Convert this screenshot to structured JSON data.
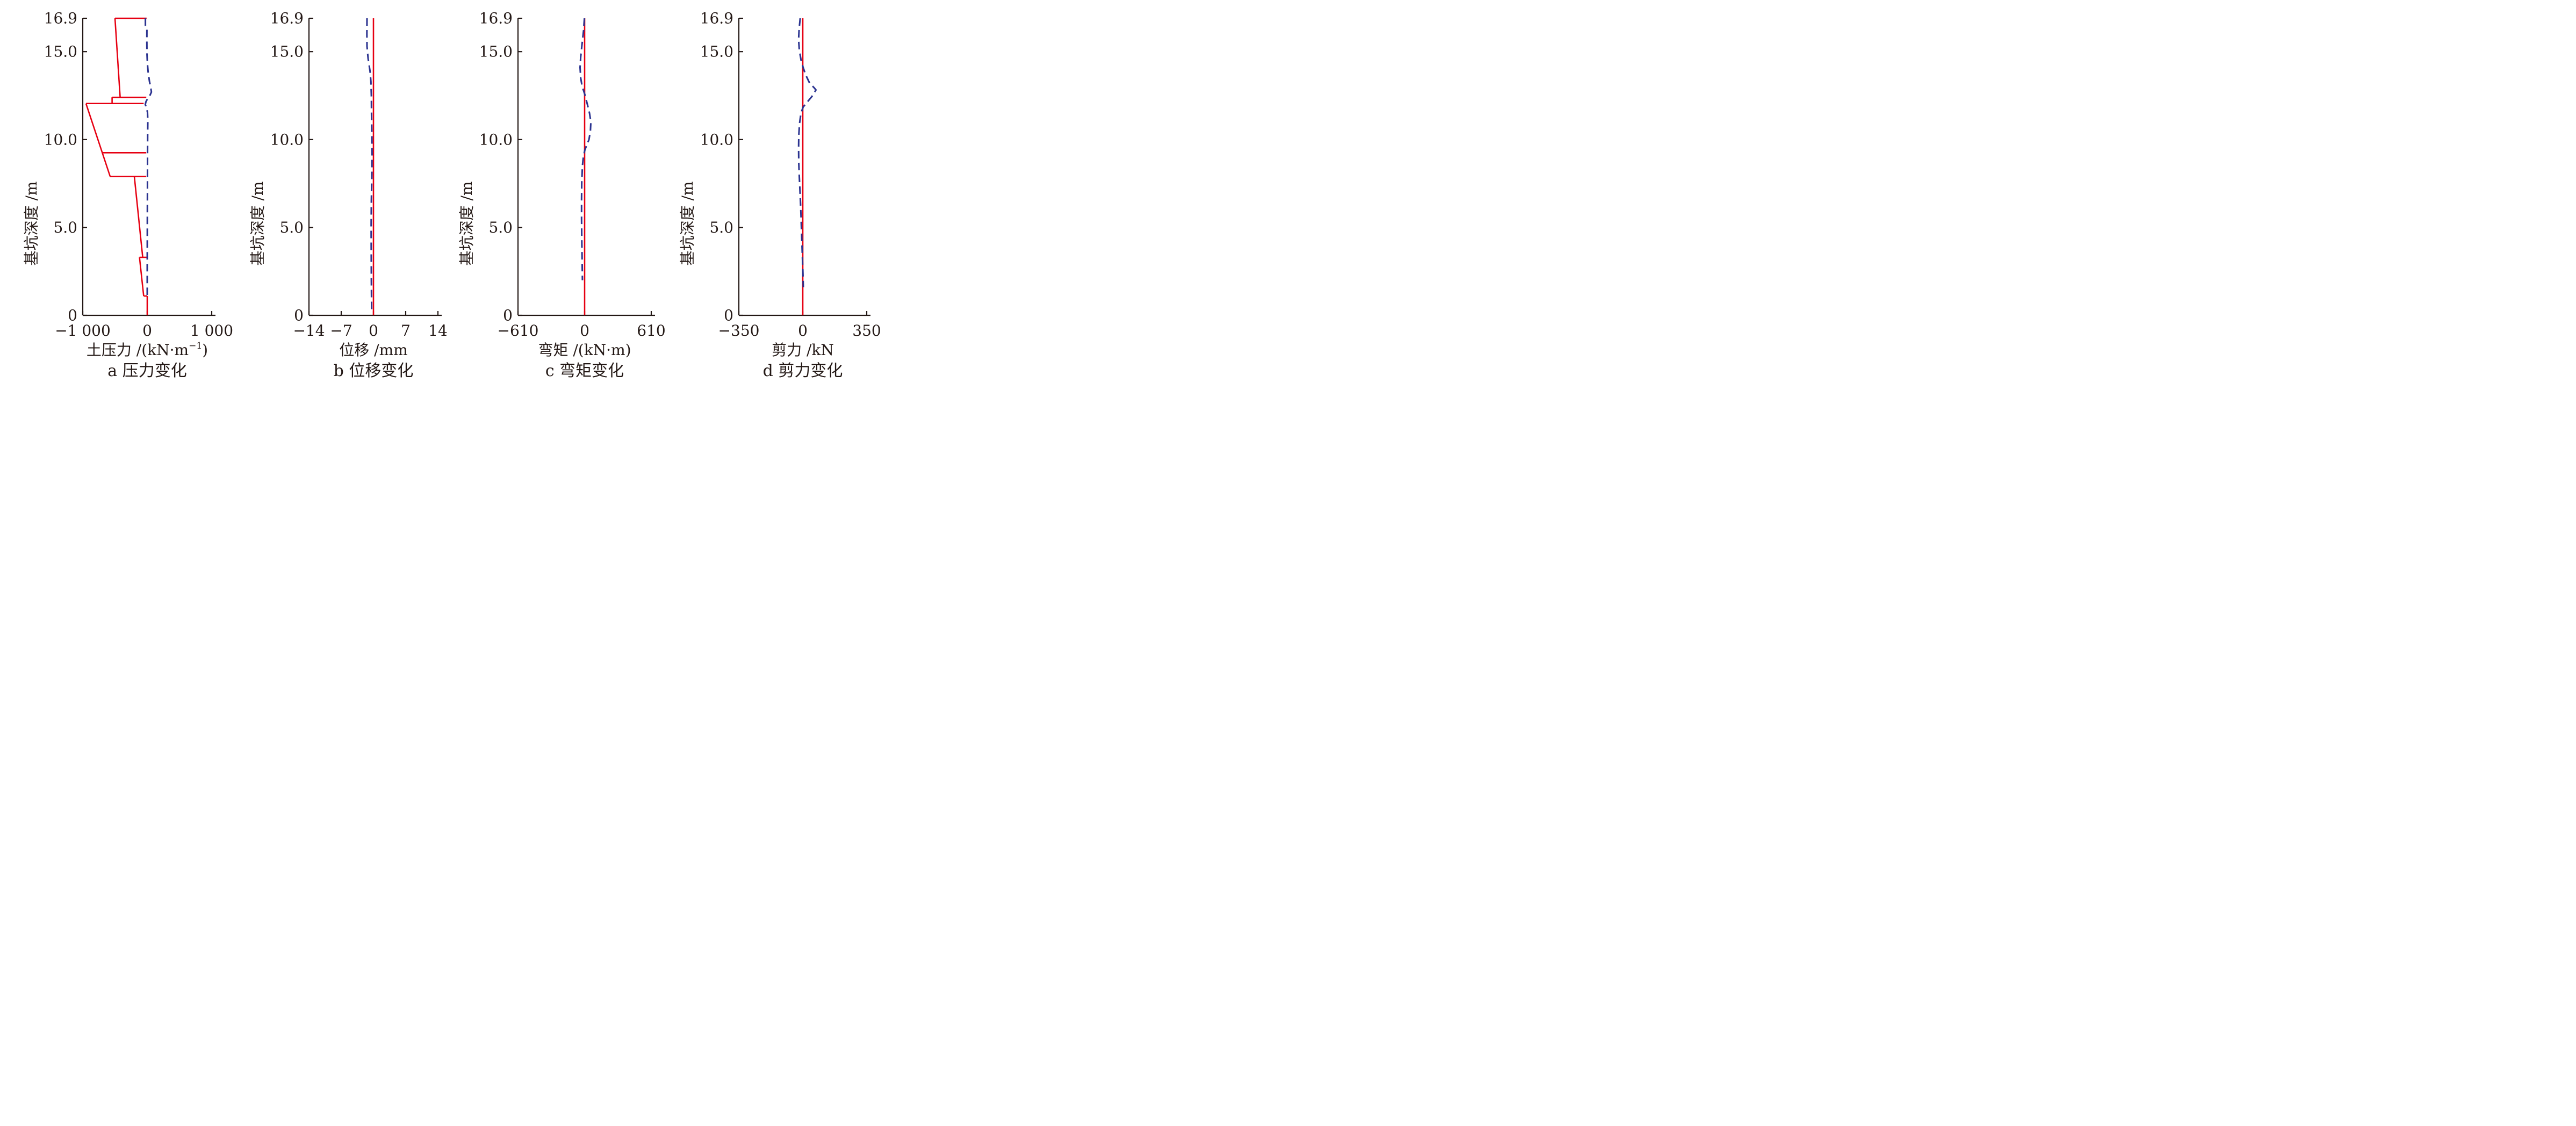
{
  "figure": {
    "background": "#ffffff",
    "colors": {
      "red": "#e60012",
      "blue": "#2b3390",
      "axis": "#231815",
      "text": "#231815"
    },
    "y_axis": {
      "label": "基坑深度 /m",
      "min": 0,
      "max": 16.9,
      "ticks": [
        {
          "value": 16.9,
          "label": "16.9"
        },
        {
          "value": 15.0,
          "label": "15.0"
        },
        {
          "value": 10.0,
          "label": "10.0"
        },
        {
          "value": 5.0,
          "label": "5.0"
        },
        {
          "value": 0,
          "label": "0"
        }
      ]
    }
  },
  "chart_data": [
    {
      "id": "a",
      "type": "line",
      "caption": "a 压力变化",
      "xlabel": "土压力 /(kN·m⁻¹)",
      "xlabel_parts": [
        {
          "t": "土压力 /(kN·m"
        },
        {
          "t": "−1",
          "sup": true
        },
        {
          "t": ")"
        }
      ],
      "ylabel": "基坑深度 /m",
      "xlim": [
        -1000,
        1000
      ],
      "ylim": [
        0,
        16.9
      ],
      "x_ticks": [
        {
          "value": -1000,
          "label": "−1 000"
        },
        {
          "value": 0,
          "label": "0"
        },
        {
          "value": 1000,
          "label": "1 000"
        }
      ],
      "series": [
        {
          "name": "earth-pressure-envelope",
          "color": "#e60012",
          "style": "solid",
          "segments": [
            [
              [
                -500,
                16.9
              ],
              [
                -10,
                16.9
              ]
            ],
            [
              [
                -500,
                16.9
              ],
              [
                -420,
                12.4
              ]
            ],
            [
              [
                -545,
                12.4
              ],
              [
                -15,
                12.4
              ]
            ],
            [
              [
                -545,
                12.4
              ],
              [
                -545,
                12.05
              ]
            ],
            [
              [
                -950,
                12.05
              ],
              [
                -55,
                12.05
              ]
            ],
            [
              [
                -950,
                12.05
              ],
              [
                -575,
                7.9
              ]
            ],
            [
              [
                -695,
                9.25
              ],
              [
                -15,
                9.25
              ]
            ],
            [
              [
                -575,
                7.9
              ],
              [
                -15,
                7.9
              ]
            ],
            [
              [
                -200,
                7.9
              ],
              [
                -70,
                3.3
              ]
            ],
            [
              [
                -120,
                3.3
              ],
              [
                -10,
                3.3
              ]
            ],
            [
              [
                -120,
                3.3
              ],
              [
                -55,
                1.1
              ]
            ],
            [
              [
                -55,
                1.1
              ],
              [
                0,
                1.1
              ]
            ],
            [
              [
                0,
                1.1
              ],
              [
                0,
                0
              ]
            ]
          ]
        },
        {
          "name": "pressure-change",
          "color": "#2b3390",
          "style": "dashed",
          "points": [
            [
              -28,
              16.9
            ],
            [
              -28,
              16.5
            ],
            [
              -5,
              16.33
            ],
            [
              -6,
              15.6
            ],
            [
              -4,
              14.9
            ],
            [
              3,
              14.3
            ],
            [
              15,
              13.8
            ],
            [
              35,
              13.3
            ],
            [
              55,
              12.95
            ],
            [
              65,
              12.7
            ],
            [
              40,
              12.5
            ],
            [
              8,
              12.35
            ],
            [
              -20,
              12.15
            ],
            [
              -30,
              12.0
            ],
            [
              -12,
              11.8
            ],
            [
              4,
              11.55
            ],
            [
              9,
              11.1
            ],
            [
              7,
              10.3
            ],
            [
              5,
              9.4
            ],
            [
              4,
              8.4
            ],
            [
              3,
              7.0
            ],
            [
              2,
              5.5
            ],
            [
              1,
              4.0
            ],
            [
              0,
              2.6
            ],
            [
              0,
              1.05
            ]
          ]
        }
      ]
    },
    {
      "id": "b",
      "type": "line",
      "caption": "b 位移变化",
      "xlabel": "位移 /mm",
      "xlabel_parts": [
        {
          "t": "位移 /mm"
        }
      ],
      "ylabel": "基坑深度 /m",
      "xlim": [
        -14,
        14
      ],
      "ylim": [
        0,
        16.9
      ],
      "x_ticks": [
        {
          "value": -14,
          "label": "−14"
        },
        {
          "value": -7,
          "label": "−7"
        },
        {
          "value": 0,
          "label": "0"
        },
        {
          "value": 7,
          "label": "7"
        },
        {
          "value": 14,
          "label": "14"
        }
      ],
      "series": [
        {
          "name": "displacement-baseline",
          "color": "#e60012",
          "style": "solid",
          "points": [
            [
              0,
              16.9
            ],
            [
              0,
              0
            ]
          ]
        },
        {
          "name": "displacement-change",
          "color": "#2b3390",
          "style": "dashed",
          "points": [
            [
              -1.4,
              16.9
            ],
            [
              -1.42,
              16.0
            ],
            [
              -1.4,
              15.3
            ],
            [
              -1.15,
              14.6
            ],
            [
              -0.75,
              13.9
            ],
            [
              -0.55,
              13.3
            ],
            [
              -0.45,
              12.5
            ],
            [
              -0.42,
              11.5
            ],
            [
              -0.35,
              10.3
            ],
            [
              -0.3,
              9.2
            ],
            [
              -0.35,
              8.0
            ],
            [
              -0.45,
              6.5
            ],
            [
              -0.5,
              5.0
            ],
            [
              -0.48,
              3.5
            ],
            [
              -0.45,
              2.0
            ],
            [
              -0.4,
              0.3
            ]
          ]
        }
      ]
    },
    {
      "id": "c",
      "type": "line",
      "caption": "c 弯矩变化",
      "xlabel": "弯矩 /(kN·m)",
      "xlabel_parts": [
        {
          "t": "弯矩 /(kN·m)"
        }
      ],
      "ylabel": "基坑深度 /m",
      "xlim": [
        -610,
        610
      ],
      "ylim": [
        0,
        16.9
      ],
      "x_ticks": [
        {
          "value": -610,
          "label": "−610"
        },
        {
          "value": 0,
          "label": "0"
        },
        {
          "value": 610,
          "label": "610"
        }
      ],
      "series": [
        {
          "name": "moment-baseline",
          "color": "#e60012",
          "style": "solid",
          "points": [
            [
              0,
              16.9
            ],
            [
              0,
              0
            ]
          ]
        },
        {
          "name": "moment-change",
          "color": "#2b3390",
          "style": "dashed",
          "points": [
            [
              -2,
              16.9
            ],
            [
              -10,
              16.2
            ],
            [
              -24,
              15.4
            ],
            [
              -36,
              14.7
            ],
            [
              -42,
              14.1
            ],
            [
              -36,
              13.5
            ],
            [
              -22,
              13.0
            ],
            [
              -8,
              12.75
            ],
            [
              5,
              12.5
            ],
            [
              25,
              12.0
            ],
            [
              45,
              11.5
            ],
            [
              57,
              11.0
            ],
            [
              53,
              10.5
            ],
            [
              40,
              10.0
            ],
            [
              20,
              9.7
            ],
            [
              2,
              9.4
            ],
            [
              -12,
              9.0
            ],
            [
              -20,
              8.5
            ],
            [
              -26,
              7.6
            ],
            [
              -28,
              6.6
            ],
            [
              -28,
              5.5
            ],
            [
              -26,
              4.4
            ],
            [
              -23,
              3.2
            ],
            [
              -20,
              2.0
            ]
          ]
        }
      ]
    },
    {
      "id": "d",
      "type": "line",
      "caption": "d 剪力变化",
      "xlabel": "剪力 /kN",
      "xlabel_parts": [
        {
          "t": "剪力 /kN"
        }
      ],
      "ylabel": "基坑深度 /m",
      "xlim": [
        -350,
        350
      ],
      "ylim": [
        0,
        16.9
      ],
      "x_ticks": [
        {
          "value": -350,
          "label": "−350"
        },
        {
          "value": 0,
          "label": "0"
        },
        {
          "value": 350,
          "label": "350"
        }
      ],
      "series": [
        {
          "name": "shear-baseline",
          "color": "#e60012",
          "style": "solid",
          "points": [
            [
              0,
              16.9
            ],
            [
              0,
              0
            ]
          ]
        },
        {
          "name": "shear-change",
          "color": "#2b3390",
          "style": "dashed",
          "points": [
            [
              -14,
              16.9
            ],
            [
              -20,
              16.3
            ],
            [
              -23,
              15.7
            ],
            [
              -19,
              15.1
            ],
            [
              -9,
              14.5
            ],
            [
              2,
              14.1
            ],
            [
              15,
              13.7
            ],
            [
              38,
              13.2
            ],
            [
              62,
              12.95
            ],
            [
              72,
              12.82
            ],
            [
              50,
              12.45
            ],
            [
              18,
              12.05
            ],
            [
              2,
              11.85
            ],
            [
              -10,
              11.5
            ],
            [
              -18,
              10.9
            ],
            [
              -22,
              10.2
            ],
            [
              -23,
              9.5
            ],
            [
              -22,
              8.7
            ],
            [
              -19,
              7.9
            ],
            [
              -15,
              7.0
            ],
            [
              -11,
              6.0
            ],
            [
              -8,
              5.1
            ],
            [
              -5,
              4.2
            ],
            [
              -2,
              3.3
            ],
            [
              1,
              2.4
            ],
            [
              3,
              1.6
            ]
          ]
        }
      ]
    }
  ]
}
